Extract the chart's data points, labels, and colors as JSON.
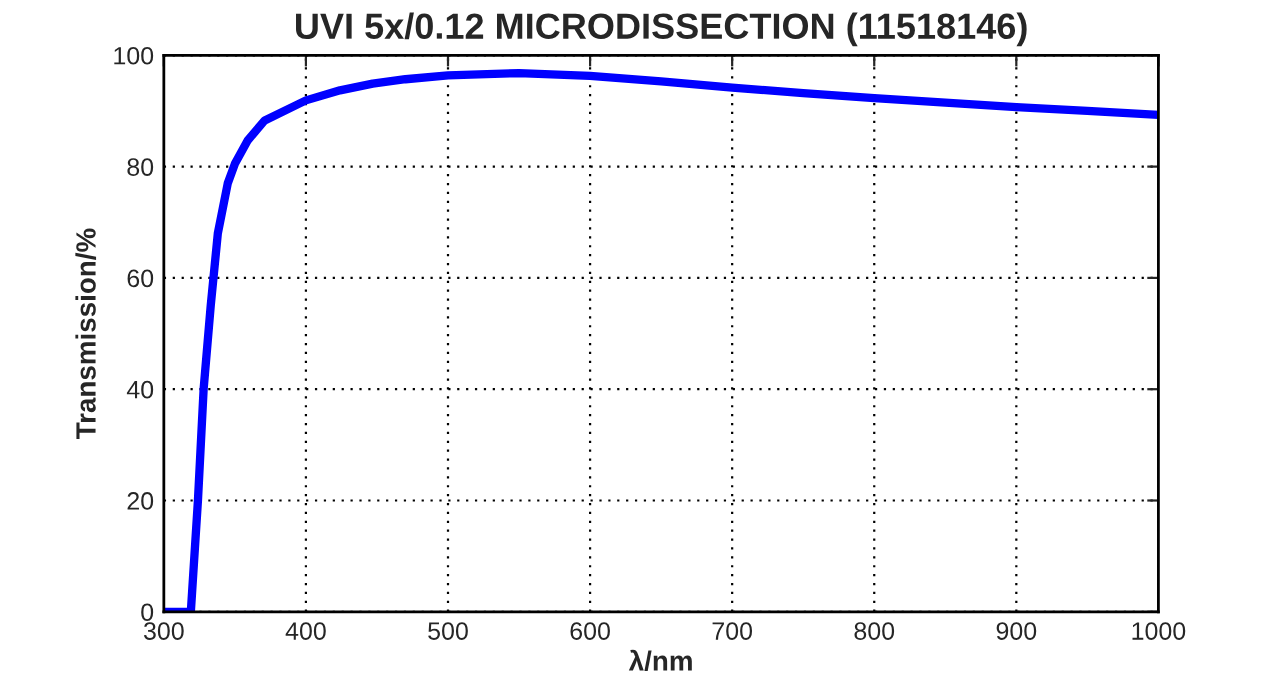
{
  "chart_data": {
    "type": "line",
    "title": "UVI 5x/0.12 MICRODISSECTION (11518146)",
    "xlabel": "λ/nm",
    "ylabel": "Transmission/%",
    "series": [
      {
        "color": "#0000ff",
        "x": [
          300,
          319,
          324,
          328,
          333,
          338,
          345,
          350,
          359,
          371,
          400,
          424,
          447,
          470,
          500,
          550,
          600,
          650,
          700,
          750,
          800,
          850,
          900,
          950,
          1000
        ],
        "values": [
          0,
          0,
          20,
          40,
          55,
          68,
          77,
          80.5,
          84.7,
          88.3,
          91.9,
          93.7,
          94.9,
          95.7,
          96.4,
          96.8,
          96.3,
          95.3,
          94.2,
          93.2,
          92.3,
          91.5,
          90.7,
          90,
          89.3
        ]
      }
    ],
    "xlim": [
      300,
      1000
    ],
    "ylim": [
      0,
      100
    ],
    "xticks": [
      300,
      400,
      500,
      600,
      700,
      800,
      900,
      1000
    ],
    "yticks": [
      0,
      20,
      40,
      60,
      80,
      100
    ],
    "grid": true,
    "line_style": "solid",
    "marker": "none"
  }
}
